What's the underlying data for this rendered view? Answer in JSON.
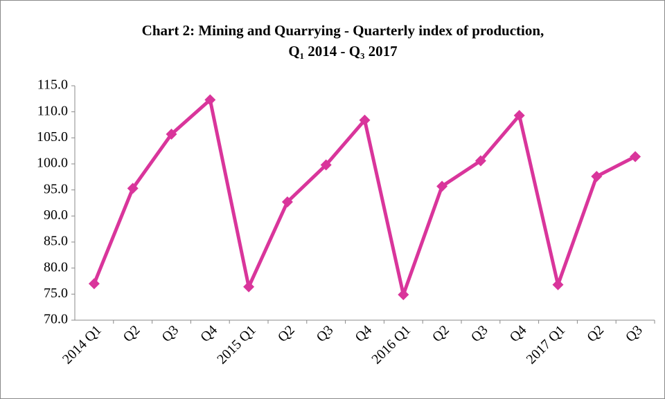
{
  "chart_data": {
    "type": "line",
    "title": [
      "Chart 2: Mining and Quarrying - Quarterly index of production,",
      "Q₁ 2014  - Q₃ 2017"
    ],
    "categories": [
      "2014 Q1",
      "Q2",
      "Q3",
      "Q4",
      "2015 Q1",
      "Q2",
      "Q3",
      "Q4",
      "2016 Q1",
      "Q2",
      "Q3",
      "Q4",
      "2017 Q1",
      "Q2",
      "Q3"
    ],
    "values": [
      77.0,
      95.3,
      105.7,
      112.3,
      76.4,
      92.7,
      99.8,
      108.4,
      74.9,
      95.7,
      100.6,
      109.3,
      76.8,
      97.6,
      101.4
    ],
    "color": "#d9359b",
    "ylim": [
      70,
      115
    ],
    "yticks": [
      {
        "value": 70,
        "label": "70.0"
      },
      {
        "value": 75,
        "label": "75.0"
      },
      {
        "value": 80,
        "label": "80.0"
      },
      {
        "value": 85,
        "label": "85.0"
      },
      {
        "value": 90,
        "label": "90.0"
      },
      {
        "value": 95,
        "label": "95.0"
      },
      {
        "value": 100,
        "label": "100.0"
      },
      {
        "value": 105,
        "label": "105.0"
      },
      {
        "value": 110,
        "label": "110.0"
      },
      {
        "value": 115,
        "label": "115.0"
      }
    ],
    "grid": false
  }
}
